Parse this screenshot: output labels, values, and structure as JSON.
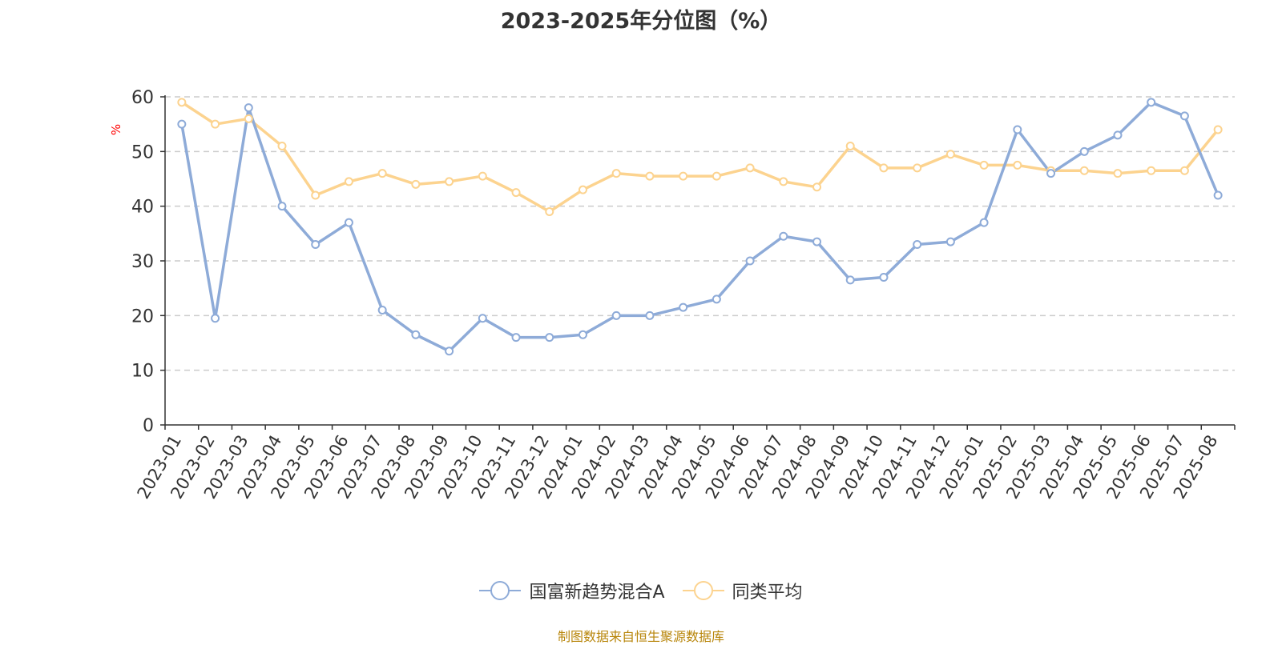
{
  "chart_data": {
    "type": "line",
    "title": "2023-2025年分位图（%）",
    "ylabel": "%",
    "ylim": [
      0,
      60
    ],
    "yticks": [
      0,
      10,
      20,
      30,
      40,
      50,
      60
    ],
    "grid": true,
    "legend_position": "bottom-center",
    "categories": [
      "2023-01",
      "2023-02",
      "2023-03",
      "2023-04",
      "2023-05",
      "2023-06",
      "2023-07",
      "2023-08",
      "2023-09",
      "2023-10",
      "2023-11",
      "2023-12",
      "2024-01",
      "2024-02",
      "2024-03",
      "2024-04",
      "2024-05",
      "2024-06",
      "2024-07",
      "2024-08",
      "2024-09",
      "2024-10",
      "2024-11",
      "2024-12",
      "2025-01",
      "2025-02",
      "2025-03",
      "2025-04",
      "2025-05",
      "2025-06",
      "2025-07",
      "2025-08"
    ],
    "series": [
      {
        "name": "国富新趋势混合A",
        "color": "#8eabd8",
        "values": [
          55,
          19.5,
          58,
          40,
          33,
          37,
          21,
          16.5,
          13.5,
          19.5,
          16,
          16,
          16.5,
          20,
          20,
          21.5,
          23,
          30,
          34.5,
          33.5,
          26.5,
          27,
          33,
          33.5,
          37,
          54,
          46,
          50,
          53,
          59,
          56.5,
          42
        ]
      },
      {
        "name": "同类平均",
        "color": "#fcd38f",
        "values": [
          59,
          55,
          56,
          51,
          42,
          44.5,
          46,
          44,
          44.5,
          45.5,
          42.5,
          39,
          43,
          46,
          45.5,
          45.5,
          45.5,
          47,
          44.5,
          43.5,
          51,
          47,
          47,
          49.5,
          47.5,
          47.5,
          46.5,
          46.5,
          46,
          46.5,
          46.5,
          54
        ]
      }
    ]
  },
  "source_text": "制图数据来自恒生聚源数据库"
}
